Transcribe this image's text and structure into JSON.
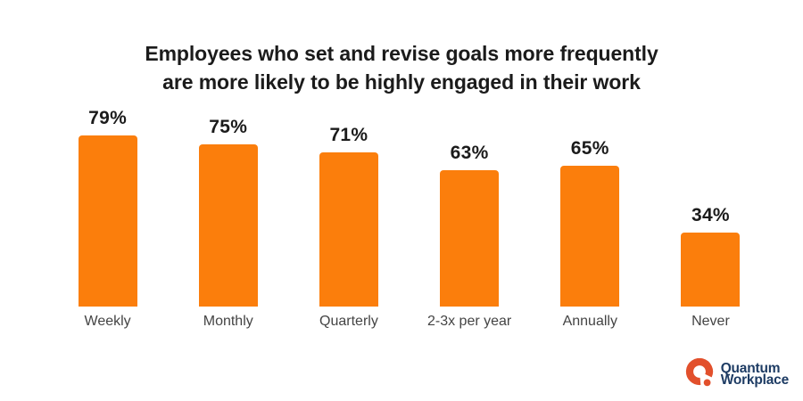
{
  "title": {
    "line1": "Employees who set and revise goals more frequently",
    "line2": "are more likely to be highly engaged in their work"
  },
  "chart_data": {
    "type": "bar",
    "title": "Employees who set and revise goals more frequently are more likely to be highly engaged in their work",
    "categories": [
      "Weekly",
      "Monthly",
      "Quarterly",
      "2-3x per year",
      "Annually",
      "Never"
    ],
    "values": [
      79,
      75,
      71,
      63,
      65,
      34
    ],
    "value_labels": [
      "79%",
      "75%",
      "71%",
      "63%",
      "65%",
      "34%"
    ],
    "xlabel": "",
    "ylabel": "",
    "ylim": [
      0,
      100
    ],
    "unit": "%",
    "grid": false,
    "legend": false,
    "axes_shown": false,
    "bar_color": "#fb7e0c",
    "value_label_position": "above-bar",
    "category_label_position": "below-bar"
  },
  "colors": {
    "background": "#ffffff",
    "bar": "#fb7e0c",
    "title_text": "#1b1b1b",
    "value_text": "#1b1b1b",
    "category_text": "#444444",
    "logo_mark": "#e2502c",
    "logo_text": "#1e3c64"
  },
  "logo": {
    "icon": "quantum-workplace-q-mark-icon",
    "line1": "Quantum",
    "line2": "Workplace"
  }
}
